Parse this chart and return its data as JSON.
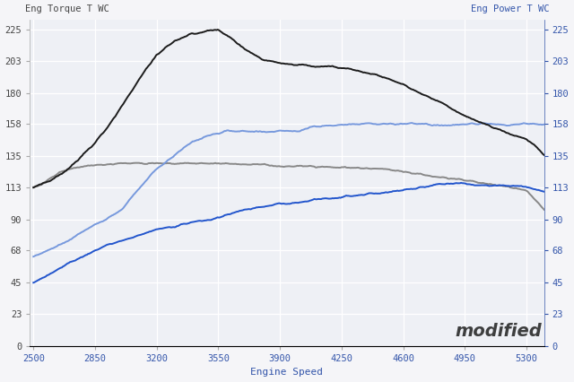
{
  "title_left": "Eng Torque T WC",
  "title_right": "Eng Power T WC",
  "xlabel": "Engine Speed",
  "fig_bg": "#f5f5f8",
  "plot_bg": "#eef0f5",
  "grid_color": "#ffffff",
  "left_tick_color": "#444444",
  "right_tick_color": "#3355aa",
  "xlabel_color": "#3355aa",
  "yticks": [
    0,
    23,
    45,
    68,
    90,
    113,
    135,
    158,
    180,
    203,
    225
  ],
  "xticks": [
    2500,
    2850,
    3200,
    3550,
    3900,
    4250,
    4600,
    4950,
    5300
  ],
  "xlim": [
    2480,
    5400
  ],
  "ylim": [
    0,
    232
  ],
  "torque_mod": {
    "color": "#1c1c1c",
    "lw": 1.4,
    "points": [
      [
        2500,
        113
      ],
      [
        2600,
        118
      ],
      [
        2700,
        126
      ],
      [
        2800,
        138
      ],
      [
        2900,
        152
      ],
      [
        3000,
        170
      ],
      [
        3100,
        190
      ],
      [
        3200,
        207
      ],
      [
        3300,
        217
      ],
      [
        3400,
        222
      ],
      [
        3500,
        224
      ],
      [
        3550,
        224.5
      ],
      [
        3600,
        221
      ],
      [
        3700,
        211
      ],
      [
        3800,
        204
      ],
      [
        3900,
        201
      ],
      [
        4000,
        200
      ],
      [
        4100,
        199
      ],
      [
        4200,
        199
      ],
      [
        4300,
        197
      ],
      [
        4400,
        194
      ],
      [
        4500,
        191
      ],
      [
        4600,
        186
      ],
      [
        4700,
        180
      ],
      [
        4800,
        174
      ],
      [
        4900,
        167
      ],
      [
        5000,
        161
      ],
      [
        5100,
        156
      ],
      [
        5200,
        151
      ],
      [
        5300,
        147
      ],
      [
        5350,
        143
      ],
      [
        5400,
        136
      ]
    ]
  },
  "torque_stock": {
    "color": "#888888",
    "lw": 1.4,
    "points": [
      [
        2500,
        113
      ],
      [
        2550,
        115
      ],
      [
        2600,
        120
      ],
      [
        2650,
        124
      ],
      [
        2700,
        126
      ],
      [
        2750,
        127
      ],
      [
        2800,
        128
      ],
      [
        2900,
        129
      ],
      [
        3000,
        130
      ],
      [
        3100,
        130
      ],
      [
        3200,
        130
      ],
      [
        3300,
        130
      ],
      [
        3400,
        130
      ],
      [
        3500,
        130
      ],
      [
        3600,
        130
      ],
      [
        3700,
        129
      ],
      [
        3800,
        129
      ],
      [
        3900,
        128
      ],
      [
        4000,
        128
      ],
      [
        4100,
        128
      ],
      [
        4200,
        127
      ],
      [
        4300,
        127
      ],
      [
        4400,
        126
      ],
      [
        4500,
        126
      ],
      [
        4600,
        124
      ],
      [
        4700,
        122
      ],
      [
        4800,
        120
      ],
      [
        4900,
        119
      ],
      [
        5000,
        117
      ],
      [
        5100,
        115
      ],
      [
        5200,
        113
      ],
      [
        5300,
        111
      ],
      [
        5400,
        97
      ]
    ]
  },
  "power_mod": {
    "color": "#7799dd",
    "lw": 1.4,
    "points": [
      [
        2500,
        63
      ],
      [
        2600,
        69
      ],
      [
        2700,
        75
      ],
      [
        2800,
        83
      ],
      [
        2900,
        89
      ],
      [
        3000,
        97
      ],
      [
        3100,
        112
      ],
      [
        3200,
        126
      ],
      [
        3300,
        136
      ],
      [
        3400,
        145
      ],
      [
        3500,
        150
      ],
      [
        3600,
        153
      ],
      [
        3700,
        153
      ],
      [
        3800,
        152
      ],
      [
        3900,
        153
      ],
      [
        4000,
        153
      ],
      [
        4100,
        156
      ],
      [
        4200,
        157
      ],
      [
        4300,
        158
      ],
      [
        4400,
        158
      ],
      [
        4500,
        158
      ],
      [
        4600,
        158
      ],
      [
        4700,
        158
      ],
      [
        4800,
        157
      ],
      [
        4900,
        157
      ],
      [
        5000,
        158
      ],
      [
        5100,
        158
      ],
      [
        5200,
        157
      ],
      [
        5300,
        158
      ],
      [
        5400,
        158
      ]
    ]
  },
  "power_stock": {
    "color": "#2255cc",
    "lw": 1.4,
    "points": [
      [
        2500,
        45
      ],
      [
        2600,
        52
      ],
      [
        2700,
        59
      ],
      [
        2800,
        65
      ],
      [
        2900,
        71
      ],
      [
        3000,
        75
      ],
      [
        3100,
        79
      ],
      [
        3200,
        83
      ],
      [
        3300,
        85
      ],
      [
        3400,
        88
      ],
      [
        3500,
        90
      ],
      [
        3600,
        93
      ],
      [
        3700,
        97
      ],
      [
        3800,
        99
      ],
      [
        3900,
        101
      ],
      [
        4000,
        102
      ],
      [
        4100,
        104
      ],
      [
        4200,
        105
      ],
      [
        4300,
        107
      ],
      [
        4400,
        108
      ],
      [
        4500,
        109
      ],
      [
        4600,
        111
      ],
      [
        4700,
        113
      ],
      [
        4800,
        115
      ],
      [
        4900,
        116
      ],
      [
        5000,
        115
      ],
      [
        5100,
        114
      ],
      [
        5200,
        114
      ],
      [
        5300,
        113
      ],
      [
        5400,
        110
      ]
    ]
  },
  "noise_scale": 0.55,
  "watermark": "modified",
  "font_family": "monospace",
  "title_fontsize": 7.5,
  "tick_fontsize": 7.5,
  "xlabel_fontsize": 8
}
